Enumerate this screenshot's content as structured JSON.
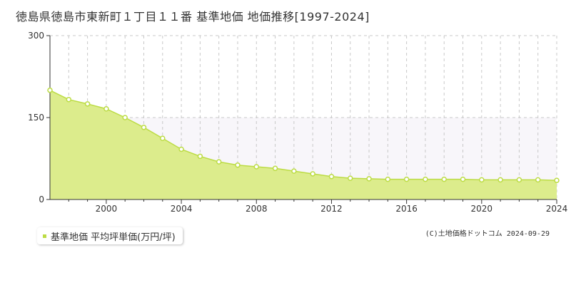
{
  "title": "徳島県徳島市東新町１丁目１１番 基準地価 地価推移[1997-2024]",
  "credit": "(C)土地価格ドットコム 2024-09-29",
  "colors": {
    "fill": "#dcec8c",
    "line": "#bcdc44",
    "marker_fill": "#ffffff",
    "marker_stroke": "#bcdc44",
    "band": "#f8f6fa",
    "grid": "#c8c8c8",
    "axis": "#333333"
  },
  "chart_data": {
    "type": "area",
    "title": "徳島県徳島市東新町１丁目１１番 基準地価 地価推移[1997-2024]",
    "xlabel": "",
    "ylabel": "",
    "xlim": [
      1997,
      2024
    ],
    "ylim": [
      0,
      300
    ],
    "x_ticks": [
      2000,
      2004,
      2008,
      2012,
      2016,
      2020,
      2024
    ],
    "y_ticks": [
      0,
      150,
      300
    ],
    "grid": true,
    "legend_position": "bottom-left",
    "series": [
      {
        "name": "基準地価 平均坪単価(万円/坪)",
        "x": [
          1997,
          1998,
          1999,
          2000,
          2001,
          2002,
          2003,
          2004,
          2005,
          2006,
          2007,
          2008,
          2009,
          2010,
          2011,
          2012,
          2013,
          2014,
          2015,
          2016,
          2017,
          2018,
          2019,
          2020,
          2021,
          2022,
          2023,
          2024
        ],
        "y": [
          200,
          183,
          175,
          166,
          150,
          132,
          112,
          92,
          79,
          69,
          63,
          60,
          57,
          52,
          47,
          42,
          39,
          38,
          37,
          37,
          37,
          37,
          37,
          36,
          36,
          36,
          36,
          35
        ]
      }
    ]
  }
}
